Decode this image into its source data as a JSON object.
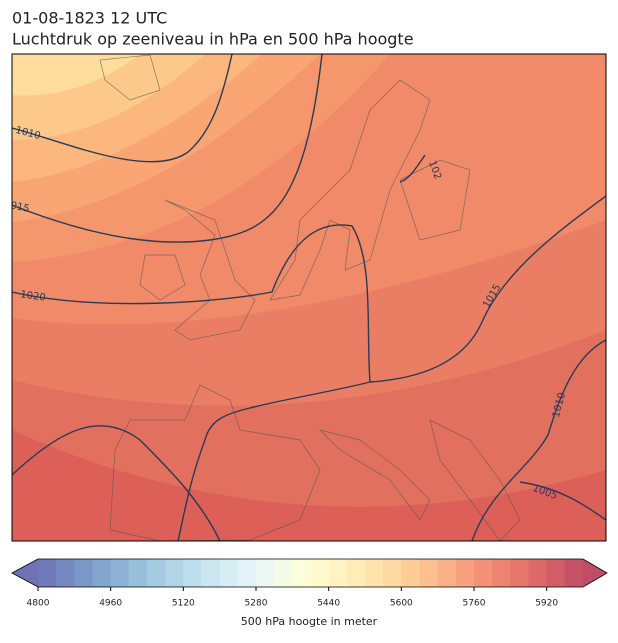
{
  "header": {
    "title": "01-08-1823 12 UTC",
    "subtitle": "Luchtdruk op zeeniveau in hPa en 500 hPa hoogte"
  },
  "isobar_labels": [
    "1010",
    "015",
    "1020",
    "102",
    "1015",
    "1010",
    "1005"
  ],
  "colorbar": {
    "lim": [
      4800,
      6000
    ],
    "step": 40,
    "ticks": [
      4800,
      4960,
      5120,
      5280,
      5440,
      5600,
      5760,
      5920
    ],
    "label": "500 hPa hoogte in meter"
  }
}
